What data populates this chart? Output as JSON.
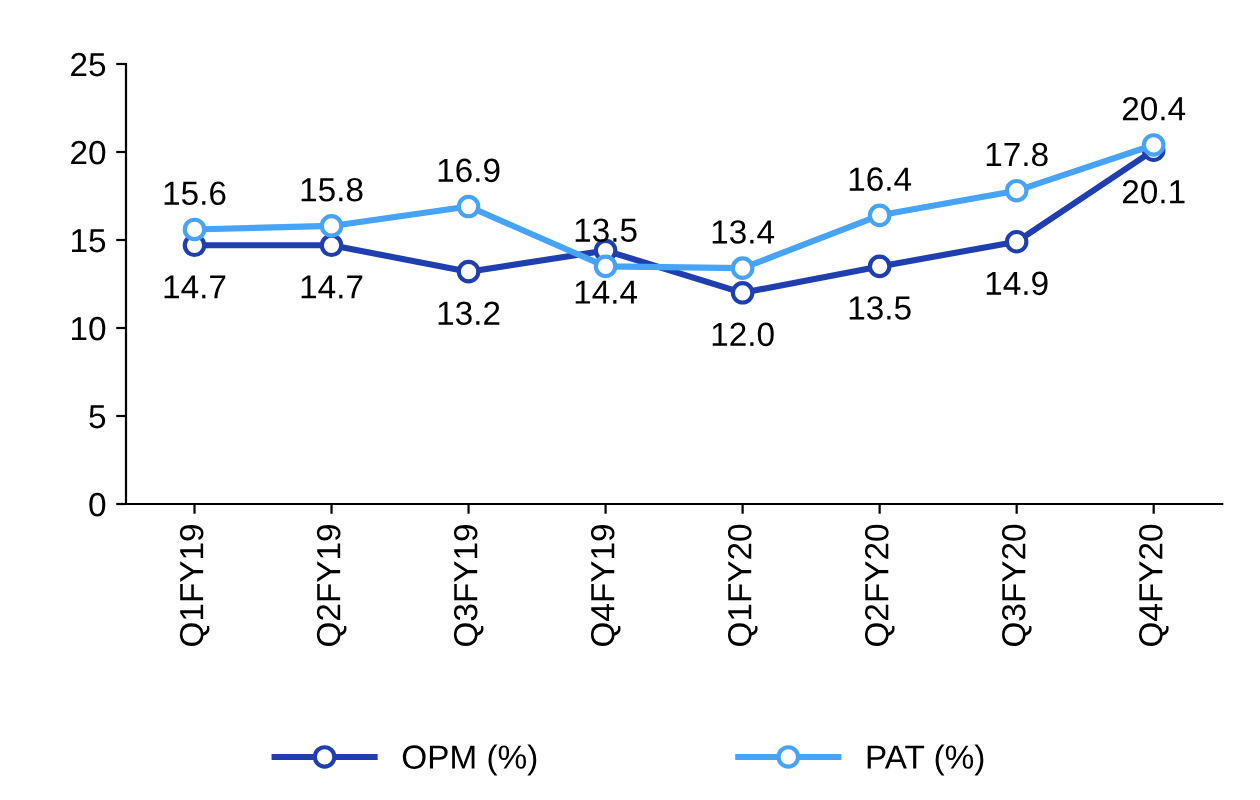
{
  "chart_data": {
    "type": "line",
    "categories": [
      "Q1FY19",
      "Q2FY19",
      "Q3FY19",
      "Q4FY19",
      "Q1FY20",
      "Q2FY20",
      "Q3FY20",
      "Q4FY20"
    ],
    "series": [
      {
        "name": "OPM (%)",
        "color": "#1f3fb0",
        "values": [
          14.7,
          14.7,
          13.2,
          14.4,
          12.0,
          13.5,
          14.9,
          20.1
        ],
        "value_labels": [
          "14.7",
          "14.7",
          "13.2",
          "14.4",
          "12.0",
          "13.5",
          "14.9",
          "20.1"
        ]
      },
      {
        "name": "PAT (%)",
        "color": "#47a3f5",
        "values": [
          15.6,
          15.8,
          16.9,
          13.5,
          13.4,
          16.4,
          17.8,
          20.4
        ],
        "value_labels": [
          "15.6",
          "15.8",
          "16.9",
          "13.5",
          "13.4",
          "16.4",
          "17.8",
          "20.4"
        ]
      }
    ],
    "ylim": [
      0,
      25
    ],
    "yticks": [
      0,
      5,
      10,
      15,
      20,
      25
    ],
    "grid": false,
    "legend": "bottom",
    "marker": "circle"
  }
}
